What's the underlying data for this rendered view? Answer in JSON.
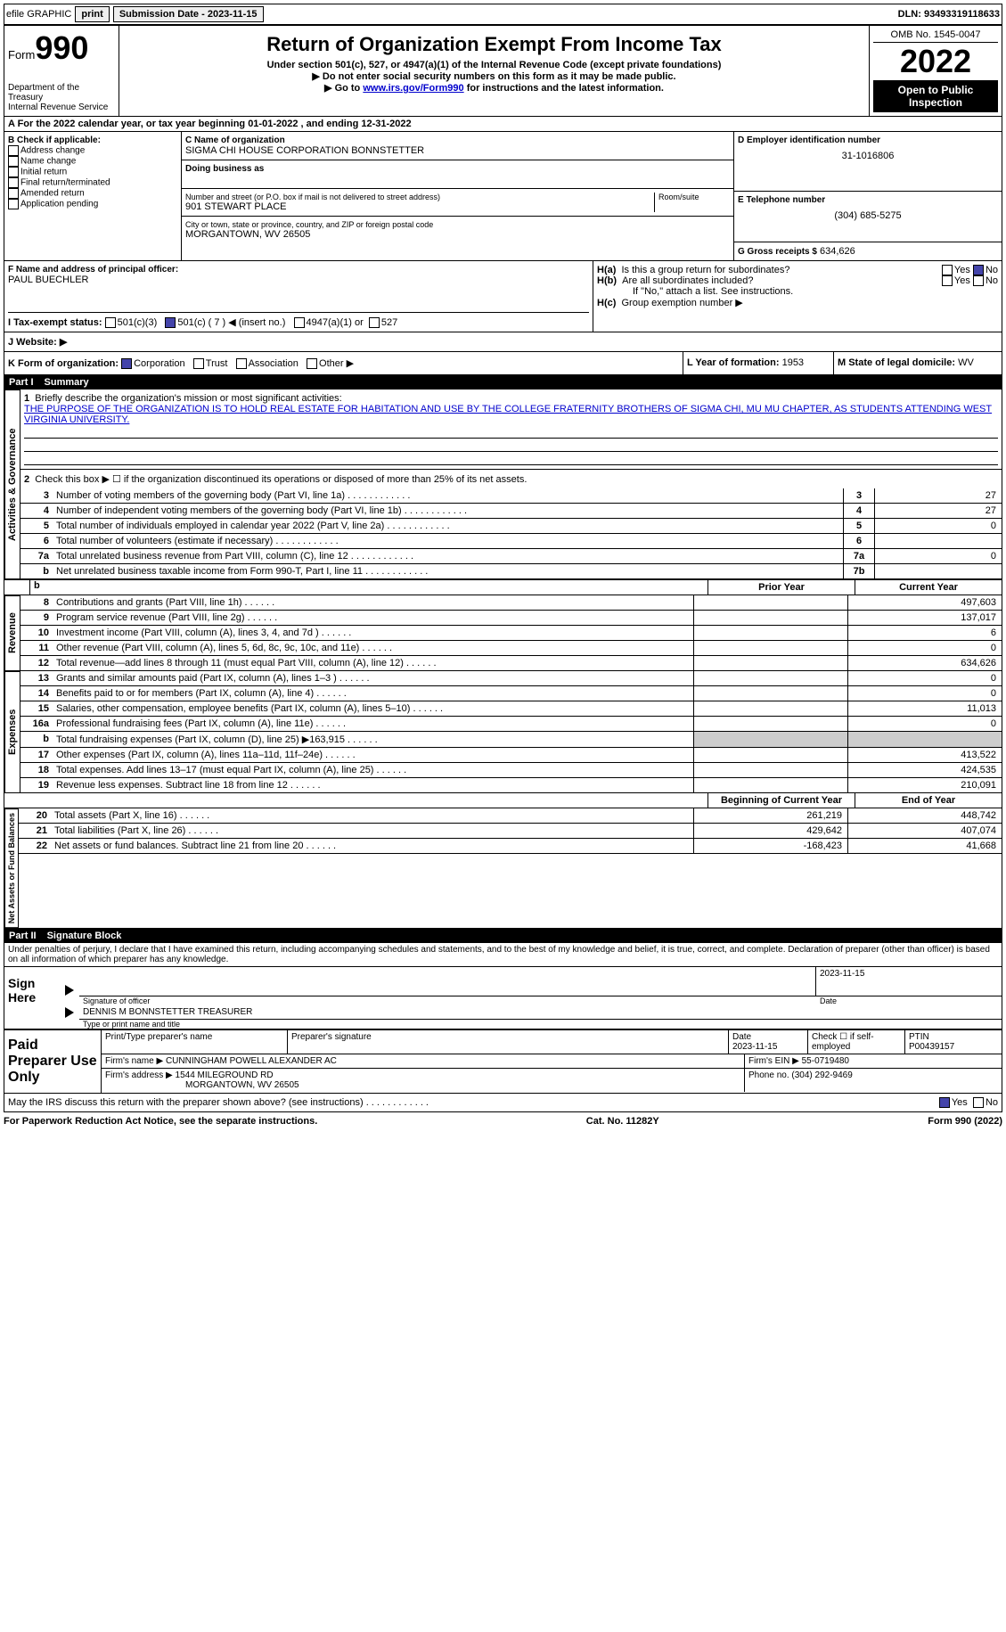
{
  "topbar": {
    "efile": "efile GRAPHIC",
    "print": "print",
    "submission_label": "Submission Date - 2023-11-15",
    "dln": "DLN: 93493319118633"
  },
  "header": {
    "form_word": "Form",
    "form_number": "990",
    "dept": "Department of the Treasury",
    "irs": "Internal Revenue Service",
    "title": "Return of Organization Exempt From Income Tax",
    "subtitle": "Under section 501(c), 527, or 4947(a)(1) of the Internal Revenue Code (except private foundations)",
    "note1": "▶ Do not enter social security numbers on this form as it may be made public.",
    "note2_pre": "▶ Go to ",
    "note2_link": "www.irs.gov/Form990",
    "note2_post": " for instructions and the latest information.",
    "omb": "OMB No. 1545-0047",
    "year": "2022",
    "inspect": "Open to Public Inspection"
  },
  "sectionA": "A For the 2022 calendar year, or tax year beginning 01-01-2022    , and ending 12-31-2022",
  "boxB": {
    "title": "B Check if applicable:",
    "items": [
      "Address change",
      "Name change",
      "Initial return",
      "Final return/terminated",
      "Amended return",
      "Application pending"
    ]
  },
  "boxC": {
    "label_name": "C Name of organization",
    "org": "SIGMA CHI HOUSE CORPORATION BONNSTETTER",
    "dba_label": "Doing business as",
    "street_label": "Number and street (or P.O. box if mail is not delivered to street address)",
    "room_label": "Room/suite",
    "street": "901 STEWART PLACE",
    "city_label": "City or town, state or province, country, and ZIP or foreign postal code",
    "city": "MORGANTOWN, WV  26505"
  },
  "boxD": {
    "label": "D Employer identification number",
    "value": "31-1016806"
  },
  "boxE": {
    "label": "E Telephone number",
    "value": "(304) 685-5275"
  },
  "boxG": {
    "label": "G Gross receipts $",
    "value": "634,626"
  },
  "boxF": {
    "label": "F  Name and address of principal officer:",
    "value": "PAUL BUECHLER"
  },
  "boxH": {
    "a_label": "H(a)  Is this a group return for subordinates?",
    "b_label": "H(b)  Are all subordinates included?",
    "attach": "If \"No,\" attach a list. See instructions.",
    "c_label": "H(c)  Group exemption number ▶",
    "yes": "Yes",
    "no": "No"
  },
  "taxExempt": {
    "label": "I  Tax-exempt status:",
    "c3": "501(c)(3)",
    "c": "501(c) ( 7 ) ◀ (insert no.)",
    "a1": "4947(a)(1) or",
    "s527": "527"
  },
  "website": {
    "label": "J Website: ▶"
  },
  "boxK": {
    "label": "K Form of organization:",
    "corp": "Corporation",
    "trust": "Trust",
    "assoc": "Association",
    "other": "Other ▶"
  },
  "boxL": {
    "label": "L Year of formation:",
    "value": "1953"
  },
  "boxM": {
    "label": "M State of legal domicile:",
    "value": "WV"
  },
  "part1": {
    "num": "Part I",
    "title": "Summary"
  },
  "summary": {
    "q1": "Briefly describe the organization's mission or most significant activities:",
    "mission": "THE PURPOSE OF THE ORGANIZATION IS TO HOLD REAL ESTATE FOR HABITATION AND USE BY THE COLLEGE FRATERNITY BROTHERS OF SIGMA CHI, MU MU CHAPTER, AS STUDENTS ATTENDING WEST VIRGINIA UNIVERSITY.",
    "q2": "Check this box ▶ ☐ if the organization discontinued its operations or disposed of more than 25% of its net assets.",
    "lines": [
      {
        "n": "3",
        "t": "Number of voting members of the governing body (Part VI, line 1a)",
        "box": "3",
        "v": "27"
      },
      {
        "n": "4",
        "t": "Number of independent voting members of the governing body (Part VI, line 1b)",
        "box": "4",
        "v": "27"
      },
      {
        "n": "5",
        "t": "Total number of individuals employed in calendar year 2022 (Part V, line 2a)",
        "box": "5",
        "v": "0"
      },
      {
        "n": "6",
        "t": "Total number of volunteers (estimate if necessary)",
        "box": "6",
        "v": ""
      },
      {
        "n": "7a",
        "t": "Total unrelated business revenue from Part VIII, column (C), line 12",
        "box": "7a",
        "v": "0"
      },
      {
        "n": "b",
        "t": "Net unrelated business taxable income from Form 990-T, Part I, line 11",
        "box": "7b",
        "v": ""
      }
    ],
    "prior": "Prior Year",
    "current": "Current Year",
    "rev": [
      {
        "n": "8",
        "t": "Contributions and grants (Part VIII, line 1h)",
        "p": "",
        "c": "497,603"
      },
      {
        "n": "9",
        "t": "Program service revenue (Part VIII, line 2g)",
        "p": "",
        "c": "137,017"
      },
      {
        "n": "10",
        "t": "Investment income (Part VIII, column (A), lines 3, 4, and 7d )",
        "p": "",
        "c": "6"
      },
      {
        "n": "11",
        "t": "Other revenue (Part VIII, column (A), lines 5, 6d, 8c, 9c, 10c, and 11e)",
        "p": "",
        "c": "0"
      },
      {
        "n": "12",
        "t": "Total revenue—add lines 8 through 11 (must equal Part VIII, column (A), line 12)",
        "p": "",
        "c": "634,626"
      }
    ],
    "exp": [
      {
        "n": "13",
        "t": "Grants and similar amounts paid (Part IX, column (A), lines 1–3 )",
        "p": "",
        "c": "0"
      },
      {
        "n": "14",
        "t": "Benefits paid to or for members (Part IX, column (A), line 4)",
        "p": "",
        "c": "0"
      },
      {
        "n": "15",
        "t": "Salaries, other compensation, employee benefits (Part IX, column (A), lines 5–10)",
        "p": "",
        "c": "11,013"
      },
      {
        "n": "16a",
        "t": "Professional fundraising fees (Part IX, column (A), line 11e)",
        "p": "",
        "c": "0"
      },
      {
        "n": "b",
        "t": "Total fundraising expenses (Part IX, column (D), line 25) ▶163,915",
        "p": "gray",
        "c": "gray"
      },
      {
        "n": "17",
        "t": "Other expenses (Part IX, column (A), lines 11a–11d, 11f–24e)",
        "p": "",
        "c": "413,522"
      },
      {
        "n": "18",
        "t": "Total expenses. Add lines 13–17 (must equal Part IX, column (A), line 25)",
        "p": "",
        "c": "424,535"
      },
      {
        "n": "19",
        "t": "Revenue less expenses. Subtract line 18 from line 12",
        "p": "",
        "c": "210,091"
      }
    ],
    "begin": "Beginning of Current Year",
    "end": "End of Year",
    "net": [
      {
        "n": "20",
        "t": "Total assets (Part X, line 16)",
        "p": "261,219",
        "c": "448,742"
      },
      {
        "n": "21",
        "t": "Total liabilities (Part X, line 26)",
        "p": "429,642",
        "c": "407,074"
      },
      {
        "n": "22",
        "t": "Net assets or fund balances. Subtract line 21 from line 20",
        "p": "-168,423",
        "c": "41,668"
      }
    ]
  },
  "vlabels": {
    "act": "Activities & Governance",
    "rev": "Revenue",
    "exp": "Expenses",
    "net": "Net Assets or Fund Balances"
  },
  "part2": {
    "num": "Part II",
    "title": "Signature Block"
  },
  "perjury": "Under penalties of perjury, I declare that I have examined this return, including accompanying schedules and statements, and to the best of my knowledge and belief, it is true, correct, and complete. Declaration of preparer (other than officer) is based on all information of which preparer has any knowledge.",
  "sign": {
    "here": "Sign Here",
    "sig_officer": "Signature of officer",
    "date": "Date",
    "sig_date": "2023-11-15",
    "name": "DENNIS M BONNSTETTER  TREASURER",
    "name_label": "Type or print name and title"
  },
  "prep": {
    "title": "Paid Preparer Use Only",
    "h1": "Print/Type preparer's name",
    "h2": "Preparer's signature",
    "h3": "Date",
    "date": "2023-11-15",
    "check": "Check ☐ if self-employed",
    "ptin_l": "PTIN",
    "ptin": "P00439157",
    "firm_l": "Firm's name     ▶",
    "firm": "CUNNINGHAM POWELL ALEXANDER AC",
    "ein_l": "Firm's EIN ▶",
    "ein": "55-0719480",
    "addr_l": "Firm's address ▶",
    "addr": "1544 MILEGROUND RD",
    "addr2": "MORGANTOWN, WV  26505",
    "phone_l": "Phone no.",
    "phone": "(304) 292-9469"
  },
  "discuss": "May the IRS discuss this return with the preparer shown above? (see instructions)",
  "footer": {
    "pra": "For Paperwork Reduction Act Notice, see the separate instructions.",
    "cat": "Cat. No. 11282Y",
    "form": "Form 990 (2022)"
  }
}
